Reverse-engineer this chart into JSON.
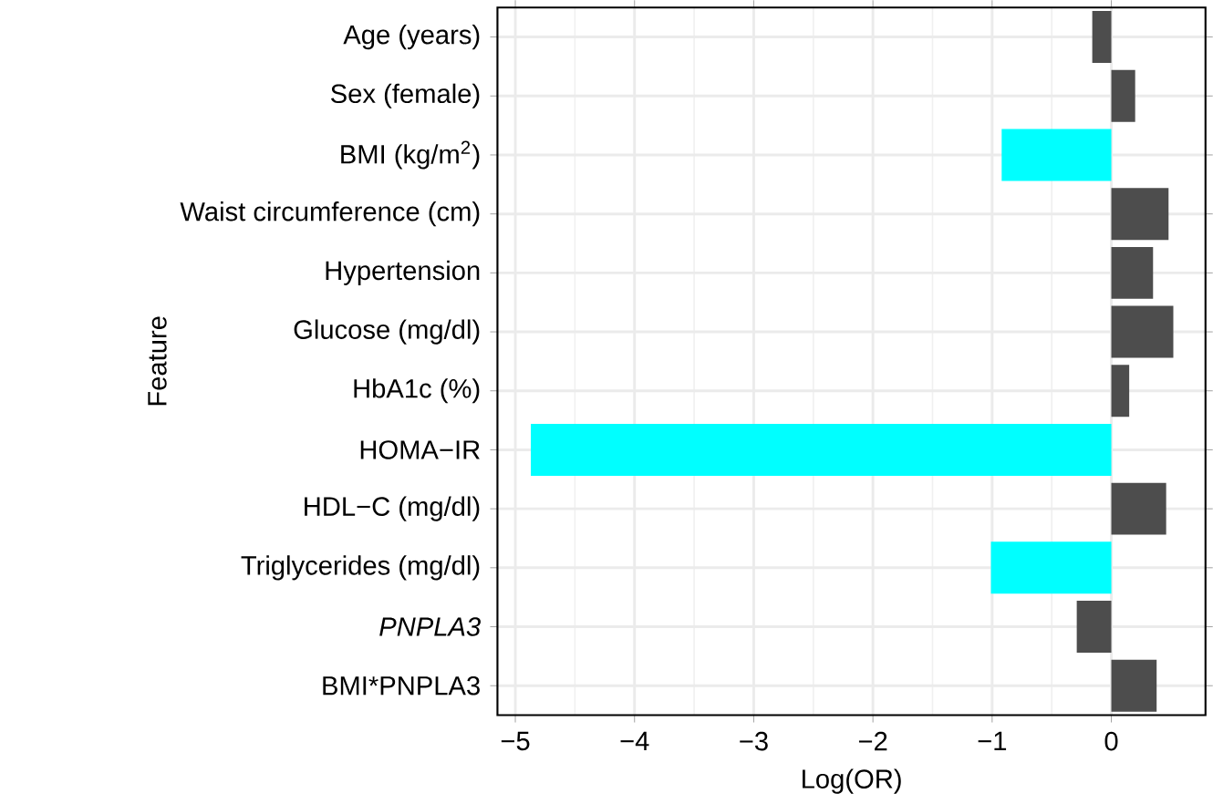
{
  "chart_data": {
    "type": "bar",
    "orientation": "horizontal",
    "xlabel": "Log(OR)",
    "ylabel": "Feature",
    "categories": [
      "Age (years)",
      "Sex (female)",
      "BMI (kg/m$^{2}$)",
      "Waist circumference (cm)",
      "Hypertension",
      "Glucose (mg/dl)",
      "HbA1c (%)",
      "HOMA−IR",
      "HDL−C (mg/dl)",
      "Triglycerides (mg/dl)",
      "*PNPLA3*",
      "BMI*PNPLA3"
    ],
    "values": [
      -0.16,
      0.2,
      -0.92,
      0.48,
      0.35,
      0.52,
      0.15,
      -4.87,
      0.46,
      -1.01,
      -0.29,
      0.38
    ],
    "colors": [
      "#4d4d4d",
      "#4d4d4d",
      "#00ffff",
      "#4d4d4d",
      "#4d4d4d",
      "#4d4d4d",
      "#4d4d4d",
      "#00ffff",
      "#4d4d4d",
      "#00ffff",
      "#4d4d4d",
      "#4d4d4d"
    ],
    "xlim": [
      -5.15,
      0.79
    ],
    "xticks": [
      {
        "value": -5,
        "label": "−5"
      },
      {
        "value": -4,
        "label": "−4"
      },
      {
        "value": -3,
        "label": "−3"
      },
      {
        "value": -2,
        "label": "−2"
      },
      {
        "value": -1,
        "label": "−1"
      },
      0
    ],
    "grid": true
  }
}
